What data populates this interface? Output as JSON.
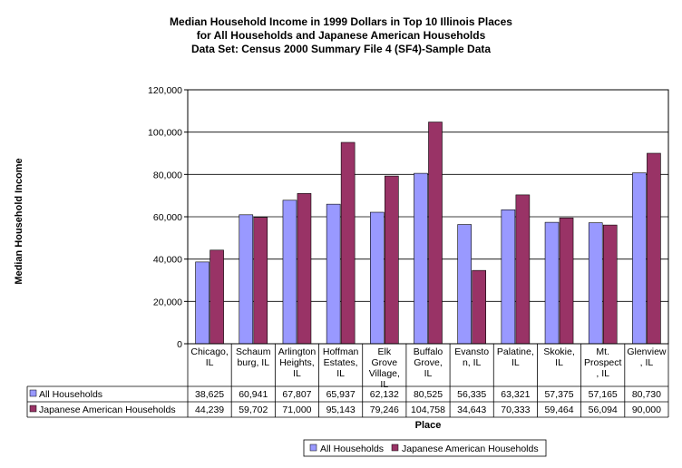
{
  "chart_data": {
    "type": "bar",
    "title_lines": [
      "Median Household Income in 1999 Dollars in Top 10 Illinois Places",
      "for All Households and Japanese American Households",
      "Data Set: Census 2000 Summary File 4 (SF4)-Sample Data"
    ],
    "ylabel": "Median Household Income",
    "xlabel": "Place",
    "ylim": [
      0,
      120000
    ],
    "yticks": [
      0,
      20000,
      40000,
      60000,
      80000,
      100000,
      120000
    ],
    "ytick_labels": [
      "0",
      "20,000",
      "40,000",
      "60,000",
      "80,000",
      "100,000",
      "120,000"
    ],
    "grid": true,
    "legend_position": "bottom",
    "categories": [
      [
        "Chicago,",
        "IL"
      ],
      [
        "Schaum",
        "burg, IL"
      ],
      [
        "Arlington",
        "Heights,",
        "IL"
      ],
      [
        "Hoffman",
        "Estates,",
        "IL"
      ],
      [
        "Elk",
        "Grove",
        "Village,",
        "IL"
      ],
      [
        "Buffalo",
        "Grove,",
        "IL"
      ],
      [
        "Evansto",
        "n, IL"
      ],
      [
        "Palatine,",
        "IL"
      ],
      [
        "Skokie,",
        "IL"
      ],
      [
        "Mt.",
        "Prospect",
        ", IL"
      ],
      [
        "Glenview",
        ", IL"
      ]
    ],
    "series": [
      {
        "name": "All Households",
        "color": "#9999ff",
        "values": [
          38625,
          60941,
          67807,
          65937,
          62132,
          80525,
          56335,
          63321,
          57375,
          57165,
          80730
        ],
        "labels": [
          "38,625",
          "60,941",
          "67,807",
          "65,937",
          "62,132",
          "80,525",
          "56,335",
          "63,321",
          "57,375",
          "57,165",
          "80,730"
        ]
      },
      {
        "name": "Japanese American Households",
        "color": "#993366",
        "values": [
          44239,
          59702,
          71000,
          95143,
          79246,
          104758,
          34643,
          70333,
          59464,
          56094,
          90000
        ],
        "labels": [
          "44,239",
          "59,702",
          "71,000",
          "95,143",
          "79,246",
          "104,758",
          "34,643",
          "70,333",
          "59,464",
          "56,094",
          "90,000"
        ]
      }
    ]
  }
}
